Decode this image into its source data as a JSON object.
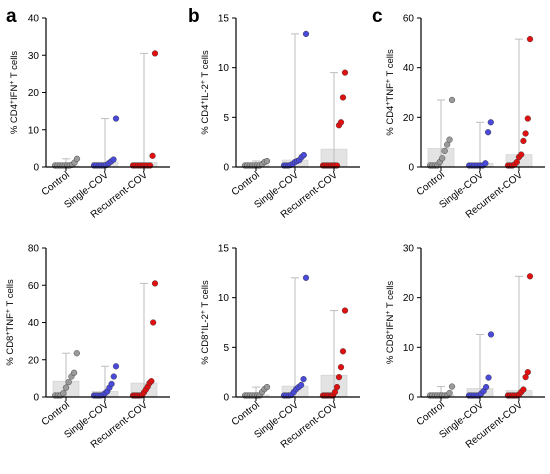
{
  "colors": {
    "Control": "#9a9a9a",
    "Single-COV": "#4a4ad8",
    "Recurrent-COV": "#e01010",
    "bar_fill": "#e3e3e3",
    "whisker": "#bdbdbd",
    "axis": "#000000"
  },
  "chart_data": [
    {
      "type": "bar",
      "panel": "a",
      "ylabel": {
        "pre": "% CD4",
        "sup1": "+",
        "mid": "IFN",
        "sup2": "+",
        "post": " T cells"
      },
      "categories": [
        "Control",
        "Single-COV",
        "Recurrent-COV"
      ],
      "ylim": [
        0,
        40
      ],
      "yticks": [
        0,
        10,
        20,
        30,
        40
      ],
      "bars": [
        0.3,
        1.3,
        1.2
      ],
      "whisker_max": [
        2.2,
        13.0,
        30.5
      ],
      "points": [
        [
          0,
          0,
          0,
          0,
          0,
          0,
          0,
          0.6,
          1.2,
          2.2
        ],
        [
          0,
          0,
          0,
          0,
          0.2,
          0.5,
          1.0,
          1.5,
          2.0,
          13.0
        ],
        [
          0,
          0,
          0,
          0,
          0,
          0,
          0,
          0.3,
          3.0,
          30.5
        ]
      ]
    },
    {
      "type": "bar",
      "panel": "b",
      "ylabel": {
        "pre": "% CD4",
        "sup1": "+",
        "mid": "IL-2",
        "sup2": "+",
        "post": " T cells"
      },
      "categories": [
        "Control",
        "Single-COV",
        "Recurrent-COV"
      ],
      "ylim": [
        0,
        15
      ],
      "yticks": [
        0,
        5,
        10,
        15
      ],
      "bars": [
        0.2,
        0.7,
        1.8
      ],
      "whisker_max": [
        0.6,
        13.4,
        9.5
      ],
      "points": [
        [
          0,
          0,
          0,
          0,
          0,
          0,
          0,
          0.3,
          0.5,
          0.6
        ],
        [
          0,
          0,
          0,
          0.2,
          0.3,
          0.5,
          0.6,
          0.7,
          1.0,
          1.2,
          13.4
        ],
        [
          0,
          0,
          0,
          0,
          0,
          0,
          0,
          0,
          4.2,
          4.5,
          7.0,
          9.5
        ]
      ]
    },
    {
      "type": "bar",
      "panel": "c",
      "ylabel": {
        "pre": "% CD4",
        "sup1": "+",
        "mid": "TNF",
        "sup2": "+",
        "post": " T cells"
      },
      "categories": [
        "Control",
        "Single-COV",
        "Recurrent-COV"
      ],
      "ylim": [
        0,
        60
      ],
      "yticks": [
        0,
        20,
        40,
        60
      ],
      "bars": [
        7.5,
        1.5,
        5.0
      ],
      "whisker_max": [
        27.0,
        18.0,
        51.5
      ],
      "points": [
        [
          0,
          0,
          0,
          0,
          2.0,
          3.5,
          6.5,
          9.0,
          11.0,
          27.0
        ],
        [
          0,
          0,
          0,
          0,
          0,
          0,
          1.5,
          14.0,
          18.0
        ],
        [
          0,
          0,
          0,
          1.0,
          2.0,
          4.0,
          5.0,
          10.5,
          13.5,
          19.5,
          51.5
        ]
      ]
    },
    {
      "type": "bar",
      "panel": "",
      "ylabel": {
        "pre": "% CD8",
        "sup1": "+",
        "mid": "TNF",
        "sup2": "+",
        "post": " T cells"
      },
      "categories": [
        "Control",
        "Single-COV",
        "Recurrent-COV"
      ],
      "ylim": [
        0,
        80
      ],
      "yticks": [
        0,
        20,
        40,
        60,
        80
      ],
      "bars": [
        8.5,
        3.0,
        7.5
      ],
      "whisker_max": [
        23.5,
        16.5,
        61.0
      ],
      "points": [
        [
          0,
          0,
          0,
          2.0,
          5.0,
          8.0,
          11.0,
          13.0,
          23.5
        ],
        [
          0,
          0,
          0,
          0.5,
          1.0,
          2.0,
          3.0,
          5.0,
          7.0,
          11.0,
          16.5
        ],
        [
          0,
          0,
          0,
          0,
          0,
          1.0,
          2.5,
          4.0,
          5.5,
          7.5,
          8.5,
          40.0,
          61.0
        ]
      ]
    },
    {
      "type": "bar",
      "panel": "",
      "ylabel": {
        "pre": "% CD8",
        "sup1": "+",
        "mid": "IL-2",
        "sup2": "+",
        "post": " T cells"
      },
      "categories": [
        "Control",
        "Single-COV",
        "Recurrent-COV"
      ],
      "ylim": [
        0,
        15
      ],
      "yticks": [
        0,
        5,
        10,
        15
      ],
      "bars": [
        0.2,
        1.1,
        2.2
      ],
      "whisker_max": [
        1.0,
        12.0,
        8.7
      ],
      "points": [
        [
          0,
          0,
          0,
          0,
          0,
          0,
          0,
          0.5,
          0.8,
          1.0
        ],
        [
          0,
          0,
          0,
          0.2,
          0.5,
          0.8,
          1.0,
          1.2,
          1.8,
          12.0
        ],
        [
          0,
          0,
          0,
          0,
          0,
          0,
          0.5,
          1.0,
          2.0,
          3.0,
          4.6,
          8.7
        ]
      ]
    },
    {
      "type": "bar",
      "panel": "",
      "ylabel": {
        "pre": "% CD8",
        "sup1": "+",
        "mid": "IFN",
        "sup2": "+",
        "post": " T cells"
      },
      "categories": [
        "Control",
        "Single-COV",
        "Recurrent-COV"
      ],
      "ylim": [
        0,
        30
      ],
      "yticks": [
        0,
        10,
        20,
        30
      ],
      "bars": [
        0.4,
        1.7,
        1.3
      ],
      "whisker_max": [
        2.1,
        12.6,
        24.3
      ],
      "points": [
        [
          0,
          0,
          0,
          0,
          0,
          0,
          0,
          0.3,
          0.8,
          2.1
        ],
        [
          0,
          0,
          0,
          0,
          0.3,
          0.7,
          1.2,
          2.0,
          3.9,
          12.6
        ],
        [
          0,
          0,
          0,
          0,
          0,
          0.5,
          1.0,
          1.5,
          4.0,
          5.0,
          24.3
        ]
      ]
    }
  ]
}
